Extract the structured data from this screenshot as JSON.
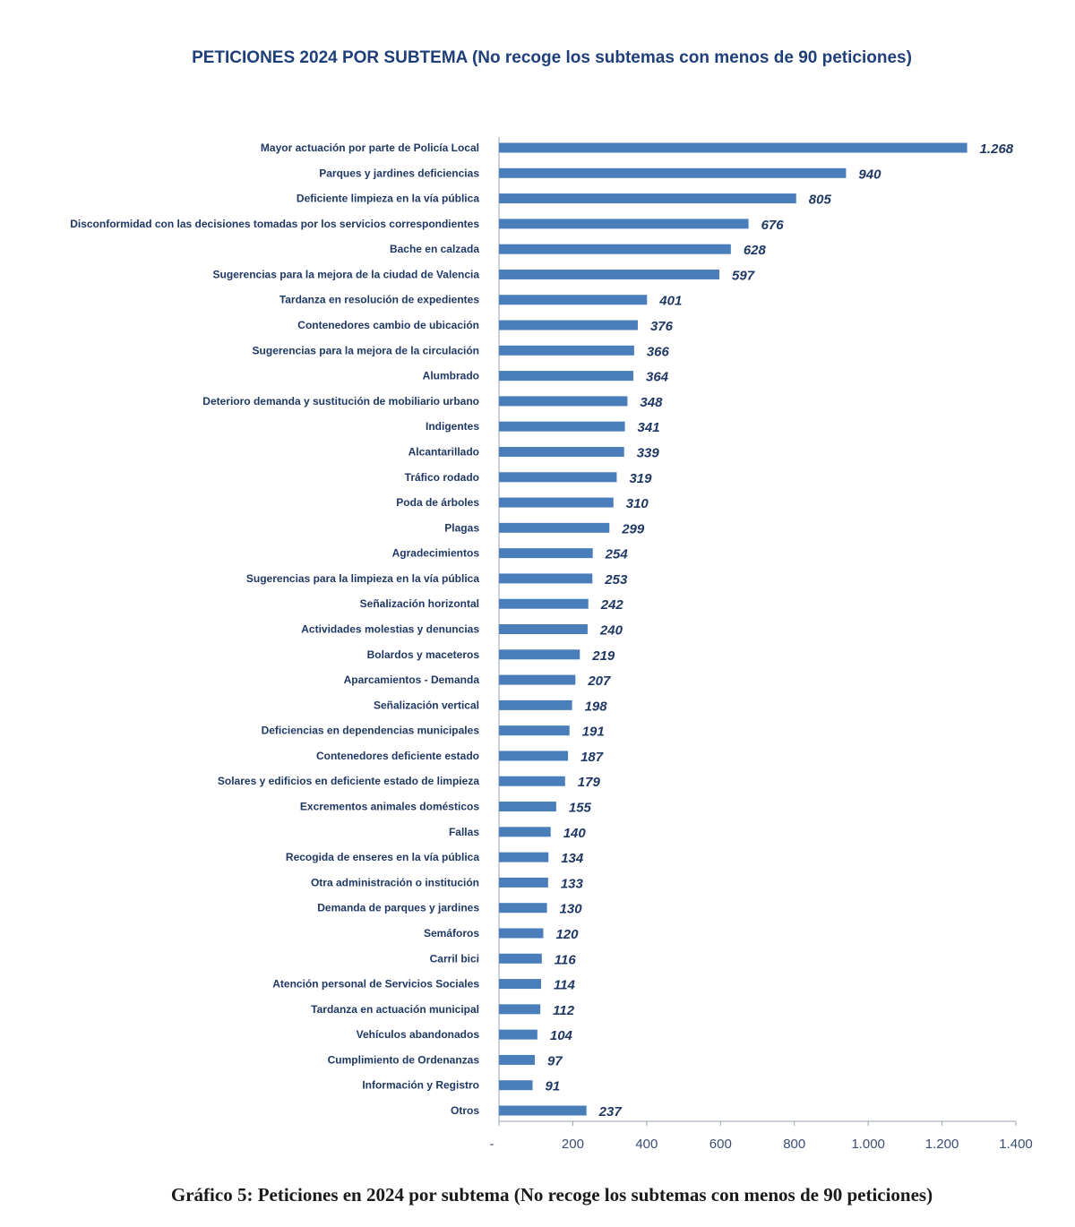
{
  "chart_data": {
    "type": "bar",
    "orientation": "horizontal",
    "title": "PETICIONES 2024 POR SUBTEMA (No recoge los subtemas con menos de 90 peticiones)",
    "caption": "Gráfico 5: Peticiones en 2024 por subtema (No recoge los subtemas con menos de 90 peticiones)",
    "categories": [
      "Mayor actuación por parte de Policía Local",
      "Parques y jardines deficiencias",
      "Deficiente limpieza en la vía pública",
      "Disconformidad con las decisiones tomadas por los servicios correspondientes",
      "Bache en calzada",
      "Sugerencias para la mejora de la ciudad de Valencia",
      "Tardanza en resolución de expedientes",
      "Contenedores cambio de ubicación",
      "Sugerencias para la mejora de la circulación",
      "Alumbrado",
      "Deterioro demanda y sustitución de mobiliario urbano",
      "Indigentes",
      "Alcantarillado",
      "Tráfico rodado",
      "Poda de árboles",
      "Plagas",
      "Agradecimientos",
      "Sugerencias para la limpieza en la vía pública",
      "Señalización horizontal",
      "Actividades molestias y denuncias",
      "Bolardos y maceteros",
      "Aparcamientos - Demanda",
      "Señalización vertical",
      "Deficiencias en dependencias municipales",
      "Contenedores deficiente estado",
      "Solares y edificios en deficiente estado de limpieza",
      "Excrementos animales domésticos",
      "Fallas",
      "Recogida de enseres en la vía pública",
      "Otra administración o institución",
      "Demanda de parques y jardines",
      "Semáforos",
      "Carril bici",
      "Atención personal de Servicios Sociales",
      "Tardanza en actuación municipal",
      "Vehículos abandonados",
      "Cumplimiento de Ordenanzas",
      "Información y Registro",
      "Otros"
    ],
    "values": [
      1268,
      940,
      805,
      676,
      628,
      597,
      401,
      376,
      366,
      364,
      348,
      341,
      339,
      319,
      310,
      299,
      254,
      253,
      242,
      240,
      219,
      207,
      198,
      191,
      187,
      179,
      155,
      140,
      134,
      133,
      130,
      120,
      116,
      114,
      112,
      104,
      97,
      91,
      237
    ],
    "value_labels": [
      "1.268",
      "940",
      "805",
      "676",
      "628",
      "597",
      "401",
      "376",
      "366",
      "364",
      "348",
      "341",
      "339",
      "319",
      "310",
      "299",
      "254",
      "253",
      "242",
      "240",
      "219",
      "207",
      "198",
      "191",
      "187",
      "179",
      "155",
      "140",
      "134",
      "133",
      "130",
      "120",
      "116",
      "114",
      "112",
      "104",
      "97",
      "91",
      "237"
    ],
    "x_ticks": [
      0,
      200,
      400,
      600,
      800,
      1000,
      1200,
      1400
    ],
    "x_tick_labels": [
      "-",
      "200",
      "400",
      "600",
      "800",
      "1.000",
      "1.200",
      "1.400"
    ],
    "xlim": [
      0,
      1400
    ],
    "xlabel": "",
    "ylabel": "",
    "grid": false,
    "legend": "none",
    "bar_color": "#4a7ebb",
    "text_color": "#1f3864"
  }
}
